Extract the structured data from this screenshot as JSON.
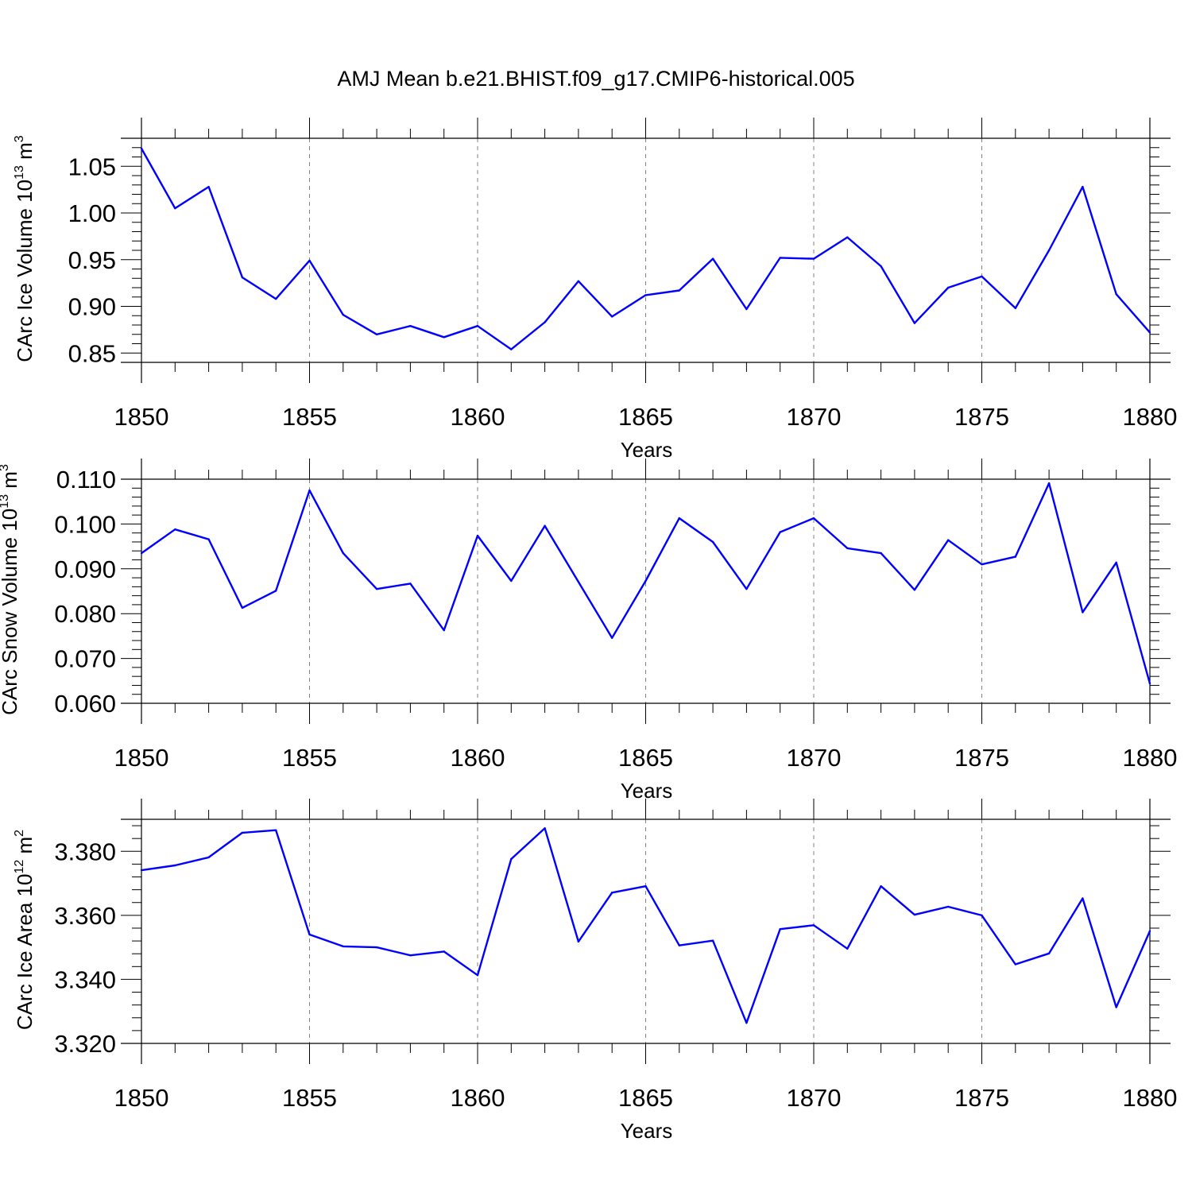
{
  "title": "AMJ Mean b.e21.BHIST.f09_g17.CMIP6-historical.005",
  "colors": {
    "series": "#0000ff",
    "axes": "#000000",
    "grid": "#808080"
  },
  "chart_data": [
    {
      "type": "line",
      "ylabel": "CArc Ice Volume 10",
      "ylabel_exp": "13",
      "ylabel_unit": " m",
      "ylabel_unit_exp": "3",
      "xlabel": "Years",
      "xlim": [
        1850,
        1880
      ],
      "ylim": [
        0.84,
        1.08
      ],
      "yticks": [
        0.85,
        0.9,
        0.95,
        1.0,
        1.05
      ],
      "ytick_labels": [
        "0.85",
        "0.90",
        "0.95",
        "1.00",
        "1.05"
      ],
      "xticks": [
        1850,
        1855,
        1860,
        1865,
        1870,
        1875,
        1880
      ],
      "xtick_labels": [
        "1850",
        "1855",
        "1860",
        "1865",
        "1870",
        "1875",
        "1880"
      ],
      "grid": "vertical dashed at major x ticks",
      "x": [
        1850,
        1851,
        1852,
        1853,
        1854,
        1855,
        1856,
        1857,
        1858,
        1859,
        1860,
        1861,
        1862,
        1863,
        1864,
        1865,
        1866,
        1867,
        1868,
        1869,
        1870,
        1871,
        1872,
        1873,
        1874,
        1875,
        1876,
        1877,
        1878,
        1879,
        1880
      ],
      "values": [
        1.069,
        1.005,
        1.028,
        0.931,
        0.908,
        0.949,
        0.891,
        0.87,
        0.879,
        0.867,
        0.879,
        0.854,
        0.883,
        0.927,
        0.889,
        0.912,
        0.917,
        0.951,
        0.897,
        0.952,
        0.951,
        0.974,
        0.943,
        0.882,
        0.92,
        0.932,
        0.898,
        0.96,
        1.028,
        0.913,
        0.872
      ]
    },
    {
      "type": "line",
      "ylabel": "CArc Snow Volume 10",
      "ylabel_exp": "13",
      "ylabel_unit": " m",
      "ylabel_unit_exp": "3",
      "xlabel": "Years",
      "xlim": [
        1850,
        1880
      ],
      "ylim": [
        0.06,
        0.11
      ],
      "yticks": [
        0.06,
        0.07,
        0.08,
        0.09,
        0.1,
        0.11
      ],
      "ytick_labels": [
        "0.060",
        "0.070",
        "0.080",
        "0.090",
        "0.100",
        "0.110"
      ],
      "xticks": [
        1850,
        1855,
        1860,
        1865,
        1870,
        1875,
        1880
      ],
      "xtick_labels": [
        "1850",
        "1855",
        "1860",
        "1865",
        "1870",
        "1875",
        "1880"
      ],
      "grid": "vertical dashed at major x ticks",
      "x": [
        1850,
        1851,
        1852,
        1853,
        1854,
        1855,
        1856,
        1857,
        1858,
        1859,
        1860,
        1861,
        1862,
        1863,
        1864,
        1865,
        1866,
        1867,
        1868,
        1869,
        1870,
        1871,
        1872,
        1873,
        1874,
        1875,
        1876,
        1877,
        1878,
        1879,
        1880
      ],
      "values": [
        0.0935,
        0.0988,
        0.0966,
        0.0813,
        0.0851,
        0.1075,
        0.0935,
        0.0855,
        0.0867,
        0.0763,
        0.0974,
        0.0873,
        0.0996,
        0.0871,
        0.0746,
        0.0873,
        0.1013,
        0.096,
        0.0855,
        0.0982,
        0.1013,
        0.0946,
        0.0935,
        0.0853,
        0.0964,
        0.091,
        0.0927,
        0.1091,
        0.0803,
        0.0914,
        0.0644
      ]
    },
    {
      "type": "line",
      "ylabel": "CArc Ice Area 10",
      "ylabel_exp": "12",
      "ylabel_unit": " m",
      "ylabel_unit_exp": "2",
      "xlabel": "Years",
      "xlim": [
        1850,
        1880
      ],
      "ylim": [
        3.32,
        3.39
      ],
      "yticks": [
        3.32,
        3.34,
        3.36,
        3.38
      ],
      "ytick_labels": [
        "3.320",
        "3.340",
        "3.360",
        "3.380"
      ],
      "xticks": [
        1850,
        1855,
        1860,
        1865,
        1870,
        1875,
        1880
      ],
      "xtick_labels": [
        "1850",
        "1855",
        "1860",
        "1865",
        "1870",
        "1875",
        "1880"
      ],
      "grid": "vertical dashed at major x ticks",
      "x": [
        1850,
        1851,
        1852,
        1853,
        1854,
        1855,
        1856,
        1857,
        1858,
        1859,
        1860,
        1861,
        1862,
        1863,
        1864,
        1865,
        1866,
        1867,
        1868,
        1869,
        1870,
        1871,
        1872,
        1873,
        1874,
        1875,
        1876,
        1877,
        1878,
        1879,
        1880
      ],
      "values": [
        3.3741,
        3.3756,
        3.3781,
        3.3858,
        3.3866,
        3.354,
        3.3503,
        3.35,
        3.3475,
        3.3487,
        3.3413,
        3.3776,
        3.3872,
        3.3518,
        3.3671,
        3.3691,
        3.3506,
        3.3521,
        3.3264,
        3.3557,
        3.3569,
        3.3496,
        3.3691,
        3.3602,
        3.3627,
        3.36,
        3.3447,
        3.3481,
        3.3653,
        3.3313,
        3.3551
      ]
    }
  ]
}
